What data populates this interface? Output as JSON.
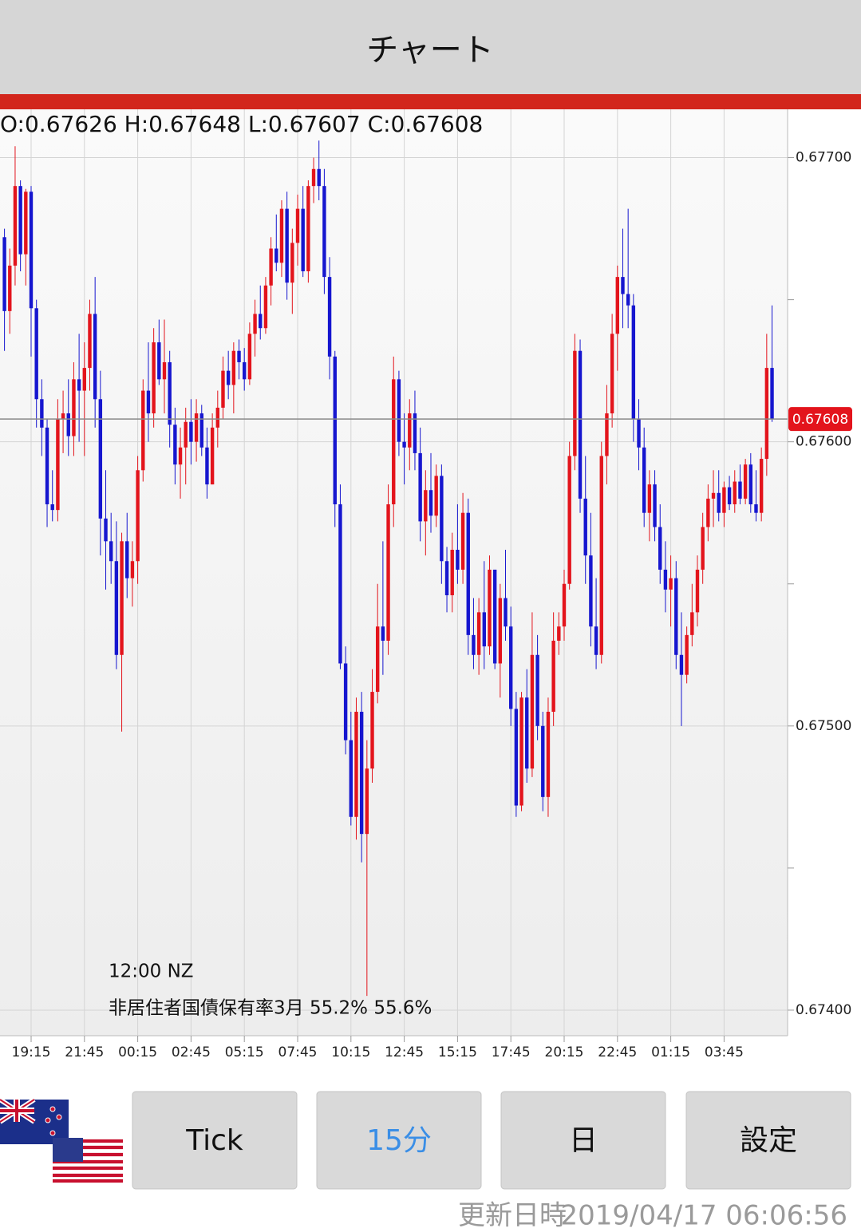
{
  "header": {
    "title": "チャート"
  },
  "chart_data": {
    "type": "candlestick",
    "info": "O:0.67626 H:0.67648 L:0.67607 C:0.67608",
    "up_color": "#e3141c",
    "down_color": "#1616cf",
    "grid": true,
    "ylim": [
      0.67391,
      0.67717
    ],
    "yticks": [
      {
        "value": 0.677,
        "label": "0.67700"
      },
      {
        "value": 0.676,
        "label": "0.67600"
      },
      {
        "value": 0.675,
        "label": "0.67500"
      },
      {
        "value": 0.674,
        "label": "0.67400"
      }
    ],
    "minor_yticks": [
      0.6765,
      0.6755,
      0.6745
    ],
    "current_price": {
      "value": 0.67608,
      "label": "0.67608"
    },
    "annotations": [
      "12:00 NZ",
      "非居住者国債保有率3月 55.2% 55.6%"
    ],
    "categories": [
      null,
      null,
      null,
      null,
      null,
      "19:15",
      null,
      null,
      null,
      null,
      null,
      null,
      null,
      null,
      null,
      "21:45",
      null,
      null,
      null,
      null,
      null,
      null,
      null,
      null,
      null,
      "00:15",
      null,
      null,
      null,
      null,
      null,
      null,
      null,
      null,
      null,
      "02:45",
      null,
      null,
      null,
      null,
      null,
      null,
      null,
      null,
      null,
      "05:15",
      null,
      null,
      null,
      null,
      null,
      null,
      null,
      null,
      null,
      "07:45",
      null,
      null,
      null,
      null,
      null,
      null,
      null,
      null,
      null,
      "10:15",
      null,
      null,
      null,
      null,
      null,
      null,
      null,
      null,
      null,
      "12:45",
      null,
      null,
      null,
      null,
      null,
      null,
      null,
      null,
      null,
      "15:15",
      null,
      null,
      null,
      null,
      null,
      null,
      null,
      null,
      null,
      "17:45",
      null,
      null,
      null,
      null,
      null,
      null,
      null,
      null,
      null,
      "20:15",
      null,
      null,
      null,
      null,
      null,
      null,
      null,
      null,
      null,
      "22:45",
      null,
      null,
      null,
      null,
      null,
      null,
      null,
      null,
      null,
      "01:15",
      null,
      null,
      null,
      null,
      null,
      null,
      null,
      null,
      null,
      "03:45",
      null,
      null,
      null,
      null,
      null,
      null,
      null,
      null,
      null
    ],
    "candles": [
      [
        0.67672,
        0.67675,
        0.67632,
        0.67646
      ],
      [
        0.67646,
        0.67668,
        0.67638,
        0.67662
      ],
      [
        0.67662,
        0.67704,
        0.67655,
        0.6769
      ],
      [
        0.6769,
        0.67692,
        0.6766,
        0.67666
      ],
      [
        0.67666,
        0.67689,
        0.67655,
        0.67688
      ],
      [
        0.67688,
        0.6769,
        0.6763,
        0.67647
      ],
      [
        0.67647,
        0.6765,
        0.67605,
        0.67615
      ],
      [
        0.67615,
        0.67622,
        0.67595,
        0.67605
      ],
      [
        0.67605,
        0.67608,
        0.6757,
        0.67578
      ],
      [
        0.67578,
        0.6759,
        0.67572,
        0.67576
      ],
      [
        0.67576,
        0.67615,
        0.67572,
        0.67608
      ],
      [
        0.67608,
        0.67618,
        0.67596,
        0.6761
      ],
      [
        0.6761,
        0.67622,
        0.67595,
        0.67602
      ],
      [
        0.67602,
        0.67628,
        0.67595,
        0.67622
      ],
      [
        0.67622,
        0.67638,
        0.676,
        0.67618
      ],
      [
        0.67618,
        0.67635,
        0.67595,
        0.67626
      ],
      [
        0.67626,
        0.6765,
        0.67618,
        0.67645
      ],
      [
        0.67645,
        0.67658,
        0.67605,
        0.67615
      ],
      [
        0.67615,
        0.67625,
        0.6756,
        0.67573
      ],
      [
        0.67573,
        0.6759,
        0.67548,
        0.67565
      ],
      [
        0.67565,
        0.67575,
        0.6755,
        0.67558
      ],
      [
        0.67558,
        0.67572,
        0.6752,
        0.67525
      ],
      [
        0.67525,
        0.67568,
        0.67498,
        0.67565
      ],
      [
        0.67565,
        0.67575,
        0.67545,
        0.67552
      ],
      [
        0.67552,
        0.67565,
        0.67542,
        0.67558
      ],
      [
        0.67558,
        0.67595,
        0.6755,
        0.6759
      ],
      [
        0.6759,
        0.67622,
        0.67586,
        0.67618
      ],
      [
        0.67618,
        0.67635,
        0.676,
        0.6761
      ],
      [
        0.6761,
        0.6764,
        0.67605,
        0.67635
      ],
      [
        0.67635,
        0.67643,
        0.6762,
        0.67622
      ],
      [
        0.67622,
        0.67643,
        0.6761,
        0.67628
      ],
      [
        0.67628,
        0.67632,
        0.67598,
        0.67606
      ],
      [
        0.67606,
        0.67612,
        0.67585,
        0.67592
      ],
      [
        0.67592,
        0.67605,
        0.6758,
        0.67598
      ],
      [
        0.67598,
        0.67612,
        0.67585,
        0.67607
      ],
      [
        0.67607,
        0.67615,
        0.67592,
        0.676
      ],
      [
        0.676,
        0.67615,
        0.67593,
        0.6761
      ],
      [
        0.6761,
        0.67613,
        0.67595,
        0.67598
      ],
      [
        0.67598,
        0.67605,
        0.6758,
        0.67585
      ],
      [
        0.67585,
        0.6761,
        0.67585,
        0.67605
      ],
      [
        0.67605,
        0.67618,
        0.67598,
        0.67612
      ],
      [
        0.67612,
        0.6763,
        0.67608,
        0.67625
      ],
      [
        0.67625,
        0.67632,
        0.67615,
        0.6762
      ],
      [
        0.6762,
        0.67635,
        0.6761,
        0.67632
      ],
      [
        0.67632,
        0.67636,
        0.67622,
        0.67628
      ],
      [
        0.67628,
        0.67633,
        0.67618,
        0.67622
      ],
      [
        0.67622,
        0.67642,
        0.6762,
        0.67638
      ],
      [
        0.67638,
        0.6765,
        0.6763,
        0.67645
      ],
      [
        0.67645,
        0.67655,
        0.67636,
        0.6764
      ],
      [
        0.6764,
        0.67658,
        0.67638,
        0.67655
      ],
      [
        0.67655,
        0.67672,
        0.67648,
        0.67668
      ],
      [
        0.67668,
        0.6768,
        0.6766,
        0.67663
      ],
      [
        0.67663,
        0.67685,
        0.67658,
        0.67682
      ],
      [
        0.67682,
        0.67688,
        0.6765,
        0.67656
      ],
      [
        0.67656,
        0.67675,
        0.67645,
        0.6767
      ],
      [
        0.6767,
        0.67687,
        0.67662,
        0.67682
      ],
      [
        0.67682,
        0.6769,
        0.67658,
        0.6766
      ],
      [
        0.6766,
        0.67692,
        0.67656,
        0.6769
      ],
      [
        0.6769,
        0.677,
        0.67684,
        0.67696
      ],
      [
        0.67696,
        0.67706,
        0.67685,
        0.6769
      ],
      [
        0.6769,
        0.67696,
        0.67652,
        0.67658
      ],
      [
        0.67658,
        0.67665,
        0.67622,
        0.6763
      ],
      [
        0.6763,
        0.67632,
        0.6757,
        0.67578
      ],
      [
        0.67578,
        0.67585,
        0.6752,
        0.67522
      ],
      [
        0.67522,
        0.67528,
        0.6749,
        0.67495
      ],
      [
        0.67495,
        0.67505,
        0.67465,
        0.67468
      ],
      [
        0.67468,
        0.6751,
        0.6746,
        0.67505
      ],
      [
        0.67505,
        0.67512,
        0.67452,
        0.67462
      ],
      [
        0.67462,
        0.67495,
        0.67405,
        0.67485
      ],
      [
        0.67485,
        0.6752,
        0.6748,
        0.67512
      ],
      [
        0.67512,
        0.6755,
        0.67508,
        0.67535
      ],
      [
        0.67535,
        0.67565,
        0.67518,
        0.6753
      ],
      [
        0.6753,
        0.67585,
        0.67525,
        0.67578
      ],
      [
        0.67578,
        0.6763,
        0.6757,
        0.67622
      ],
      [
        0.67622,
        0.67625,
        0.67595,
        0.676
      ],
      [
        0.676,
        0.6761,
        0.67585,
        0.67598
      ],
      [
        0.67598,
        0.67615,
        0.6759,
        0.6761
      ],
      [
        0.6761,
        0.67618,
        0.6759,
        0.67596
      ],
      [
        0.67596,
        0.67605,
        0.67565,
        0.67572
      ],
      [
        0.67572,
        0.6759,
        0.6756,
        0.67583
      ],
      [
        0.67583,
        0.67596,
        0.67568,
        0.67574
      ],
      [
        0.67574,
        0.67592,
        0.6757,
        0.67588
      ],
      [
        0.67588,
        0.67592,
        0.6755,
        0.67558
      ],
      [
        0.67558,
        0.67563,
        0.6754,
        0.67546
      ],
      [
        0.67546,
        0.67568,
        0.6754,
        0.67562
      ],
      [
        0.67562,
        0.67578,
        0.6755,
        0.67555
      ],
      [
        0.67555,
        0.67582,
        0.6755,
        0.67575
      ],
      [
        0.67575,
        0.6758,
        0.67525,
        0.67532
      ],
      [
        0.67532,
        0.67545,
        0.6752,
        0.67525
      ],
      [
        0.67525,
        0.67545,
        0.67518,
        0.6754
      ],
      [
        0.6754,
        0.67558,
        0.6752,
        0.67528
      ],
      [
        0.67528,
        0.6756,
        0.67525,
        0.67555
      ],
      [
        0.67555,
        0.67555,
        0.6752,
        0.67522
      ],
      [
        0.67522,
        0.6755,
        0.6751,
        0.67545
      ],
      [
        0.67545,
        0.67562,
        0.6753,
        0.67535
      ],
      [
        0.67535,
        0.67542,
        0.675,
        0.67506
      ],
      [
        0.67506,
        0.67512,
        0.67468,
        0.67472
      ],
      [
        0.67472,
        0.67512,
        0.6747,
        0.6751
      ],
      [
        0.6751,
        0.6752,
        0.6748,
        0.67485
      ],
      [
        0.67485,
        0.6754,
        0.67482,
        0.67525
      ],
      [
        0.67525,
        0.67532,
        0.67495,
        0.675
      ],
      [
        0.675,
        0.67505,
        0.6747,
        0.67475
      ],
      [
        0.67475,
        0.6751,
        0.67468,
        0.67505
      ],
      [
        0.67505,
        0.6754,
        0.675,
        0.6753
      ],
      [
        0.6753,
        0.6754,
        0.67525,
        0.67535
      ],
      [
        0.67535,
        0.67555,
        0.6753,
        0.6755
      ],
      [
        0.6755,
        0.676,
        0.67548,
        0.67595
      ],
      [
        0.67595,
        0.67638,
        0.6759,
        0.67632
      ],
      [
        0.67632,
        0.67636,
        0.67575,
        0.6758
      ],
      [
        0.6758,
        0.67595,
        0.6755,
        0.6756
      ],
      [
        0.6756,
        0.67575,
        0.67528,
        0.67535
      ],
      [
        0.67535,
        0.67552,
        0.6752,
        0.67525
      ],
      [
        0.67525,
        0.676,
        0.67522,
        0.67595
      ],
      [
        0.67595,
        0.6762,
        0.67585,
        0.6761
      ],
      [
        0.6761,
        0.67645,
        0.67605,
        0.67638
      ],
      [
        0.67638,
        0.67662,
        0.67625,
        0.67658
      ],
      [
        0.67658,
        0.67675,
        0.6764,
        0.67652
      ],
      [
        0.67652,
        0.67682,
        0.6764,
        0.67648
      ],
      [
        0.67648,
        0.67652,
        0.676,
        0.67608
      ],
      [
        0.67608,
        0.67615,
        0.6759,
        0.67598
      ],
      [
        0.67598,
        0.67605,
        0.6757,
        0.67575
      ],
      [
        0.67575,
        0.6759,
        0.67565,
        0.67585
      ],
      [
        0.67585,
        0.6759,
        0.67565,
        0.6757
      ],
      [
        0.6757,
        0.67578,
        0.6755,
        0.67555
      ],
      [
        0.67555,
        0.67565,
        0.6754,
        0.67548
      ],
      [
        0.67548,
        0.6756,
        0.67535,
        0.67552
      ],
      [
        0.67552,
        0.67558,
        0.6752,
        0.67525
      ],
      [
        0.67525,
        0.6754,
        0.675,
        0.67518
      ],
      [
        0.67518,
        0.67535,
        0.67515,
        0.67532
      ],
      [
        0.67532,
        0.6755,
        0.67528,
        0.6754
      ],
      [
        0.6754,
        0.6756,
        0.67535,
        0.67555
      ],
      [
        0.67555,
        0.67575,
        0.6755,
        0.6757
      ],
      [
        0.6757,
        0.67585,
        0.67565,
        0.6758
      ],
      [
        0.6758,
        0.6759,
        0.6757,
        0.67582
      ],
      [
        0.67582,
        0.6759,
        0.67572,
        0.67575
      ],
      [
        0.67575,
        0.67586,
        0.6757,
        0.67584
      ],
      [
        0.67584,
        0.67588,
        0.67576,
        0.67578
      ],
      [
        0.67578,
        0.6759,
        0.67575,
        0.67586
      ],
      [
        0.67586,
        0.67592,
        0.67578,
        0.6758
      ],
      [
        0.6758,
        0.67594,
        0.67578,
        0.67592
      ],
      [
        0.67592,
        0.67596,
        0.67575,
        0.67578
      ],
      [
        0.67578,
        0.6759,
        0.67572,
        0.67575
      ],
      [
        0.67575,
        0.67598,
        0.67572,
        0.67594
      ],
      [
        0.67594,
        0.67638,
        0.67588,
        0.67626
      ],
      [
        0.67626,
        0.67648,
        0.67607,
        0.67608
      ]
    ]
  },
  "buttons": [
    "Tick",
    "15分",
    "日",
    "設定"
  ],
  "footer": {
    "label": "更新日時",
    "timestamp": "2019/04/17 06:06:56"
  }
}
